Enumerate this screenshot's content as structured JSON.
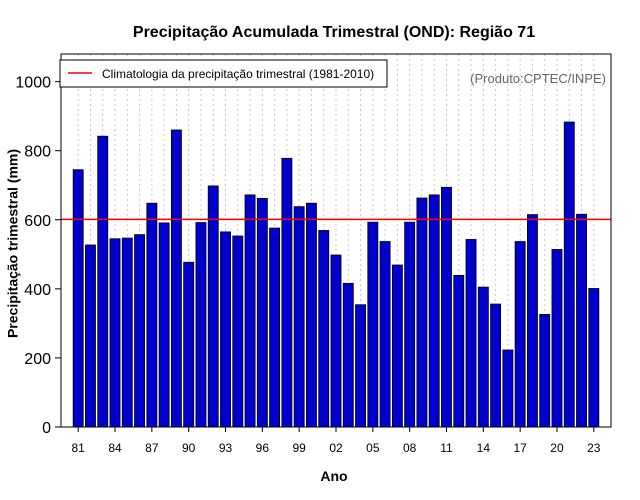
{
  "chart_data": {
    "type": "bar",
    "title": "Precipitação Acumulada Trimestral (OND): Região 71",
    "xlabel": "Ano",
    "ylabel": "Precipitação trimestral (mm)",
    "ylim": [
      0,
      1080
    ],
    "yticks": [
      0,
      200,
      400,
      600,
      800,
      1000
    ],
    "xtick_labels": [
      "81",
      "84",
      "87",
      "90",
      "93",
      "96",
      "99",
      "02",
      "05",
      "08",
      "11",
      "14",
      "17",
      "20",
      "23"
    ],
    "categories": [
      "1981",
      "1982",
      "1983",
      "1984",
      "1985",
      "1986",
      "1987",
      "1988",
      "1989",
      "1990",
      "1991",
      "1992",
      "1993",
      "1994",
      "1995",
      "1996",
      "1997",
      "1998",
      "1999",
      "2000",
      "2001",
      "2002",
      "2003",
      "2004",
      "2005",
      "2006",
      "2007",
      "2008",
      "2009",
      "2010",
      "2011",
      "2012",
      "2013",
      "2014",
      "2015",
      "2016",
      "2017",
      "2018",
      "2019",
      "2020",
      "2021",
      "2022",
      "2023"
    ],
    "values": [
      745,
      527,
      842,
      545,
      547,
      557,
      648,
      591,
      860,
      477,
      592,
      698,
      565,
      553,
      672,
      662,
      576,
      778,
      638,
      648,
      569,
      498,
      416,
      354,
      593,
      537,
      469,
      593,
      663,
      672,
      694,
      439,
      543,
      405,
      356,
      223,
      537,
      615,
      326,
      514,
      883,
      616,
      401
    ],
    "bar_color": "#0000cd",
    "climatology": {
      "value": 601,
      "color": "#ff0000",
      "label": "Climatologia da precipitação trimestral (1981-2010)"
    },
    "credit": "(Produto:CPTEC/INPE)",
    "grid": "vertical-dotted",
    "legend_position": "top-left"
  }
}
